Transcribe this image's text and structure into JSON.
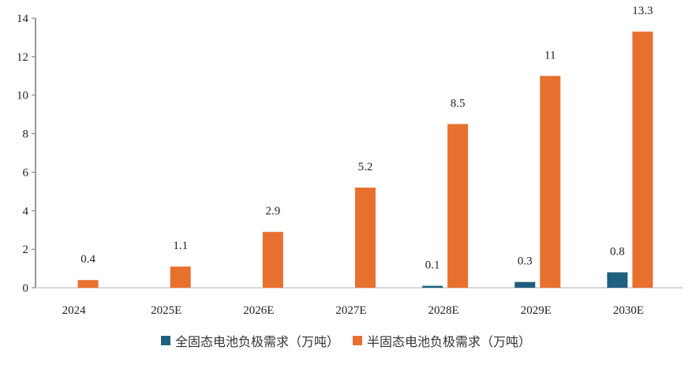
{
  "chart_data": {
    "type": "bar",
    "categories": [
      "2024",
      "2025E",
      "2026E",
      "2027E",
      "2028E",
      "2029E",
      "2030E"
    ],
    "series": [
      {
        "name": "全固态电池负极需求（万吨）",
        "color": "#1f5f7f",
        "values": [
          null,
          null,
          null,
          null,
          0.1,
          0.3,
          0.8
        ]
      },
      {
        "name": "半固态电池负极需求（万吨）",
        "color": "#e8702f",
        "values": [
          0.4,
          1.1,
          2.9,
          5.2,
          8.5,
          11,
          13.3
        ]
      }
    ],
    "ylim": [
      0,
      14
    ],
    "yticks": [
      0,
      2,
      4,
      6,
      8,
      10,
      12,
      14
    ],
    "grid": false,
    "legend": "bottom",
    "xlabel": "",
    "ylabel": ""
  }
}
